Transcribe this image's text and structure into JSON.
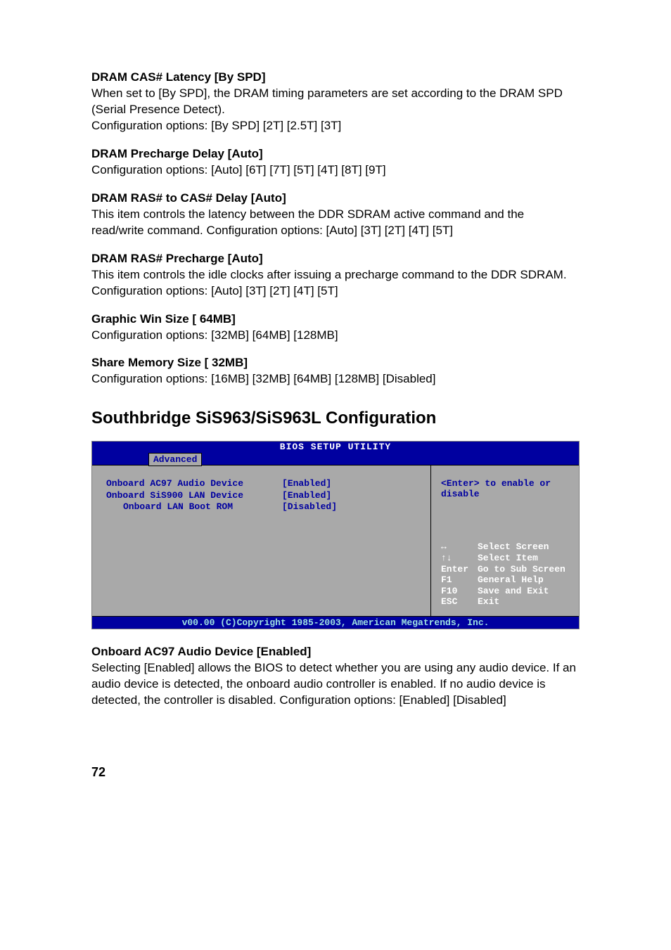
{
  "items": [
    {
      "heading": "DRAM CAS# Latency   [By SPD]",
      "body": "When set to [By SPD], the DRAM timing parameters are set according to the DRAM SPD (Serial Presence Detect).\nConfiguration options: [By SPD] [2T] [2.5T] [3T]"
    },
    {
      "heading": "DRAM Precharge Delay    [Auto]",
      "body": "Configuration options: [Auto] [6T] [7T] [5T] [4T] [8T] [9T]"
    },
    {
      "heading": "DRAM RAS# to CAS# Delay    [Auto]",
      "body": "This item controls the latency between the DDR SDRAM active command and the read/write command. Configuration options: [Auto] [3T] [2T] [4T] [5T]"
    },
    {
      "heading": "DRAM RAS# Precharge    [Auto]",
      "body": "This item controls the idle clocks after issuing a precharge command to the DDR SDRAM. Configuration options: [Auto] [3T] [2T] [4T] [5T]"
    },
    {
      "heading": "Graphic Win Size    [ 64MB]",
      "body": "Configuration options: [32MB] [64MB] [128MB]"
    },
    {
      "heading": "Share Memory Size [ 32MB]",
      "body": "Configuration options: [16MB] [32MB] [64MB] [128MB] [Disabled]"
    }
  ],
  "major_heading": "Southbridge SiS963/SiS963L Configuration",
  "bios": {
    "title": "BIOS SETUP UTILITY",
    "tab": "Advanced",
    "rows": [
      {
        "label": "Onboard AC97 Audio Device",
        "value": "[Enabled]",
        "indent": false
      },
      {
        "label": "Onboard SiS900 LAN Device",
        "value": "[Enabled]",
        "indent": false
      },
      {
        "label": "Onboard LAN Boot ROM",
        "value": "[Disabled]",
        "indent": true
      }
    ],
    "help": "<Enter> to enable or disable",
    "keys": [
      {
        "k": "↔",
        "d": "Select Screen"
      },
      {
        "k": "↑↓",
        "d": "Select Item"
      },
      {
        "k": "Enter",
        "d": "Go to Sub Screen"
      },
      {
        "k": "F1",
        "d": "General Help"
      },
      {
        "k": "F10",
        "d": "Save and Exit"
      },
      {
        "k": "ESC",
        "d": "Exit"
      }
    ],
    "footer": "v00.00 (C)Copyright 1985-2003, American Megatrends, Inc."
  },
  "after": {
    "heading": "Onboard AC97 Audio Device [Enabled]",
    "body": "Selecting [Enabled] allows the BIOS to detect whether you are using any audio device. If an audio device is detected, the onboard audio controller is enabled. If no audio device is detected, the controller is disabled. Configuration options: [Enabled] [Disabled]"
  },
  "page_num": "72"
}
